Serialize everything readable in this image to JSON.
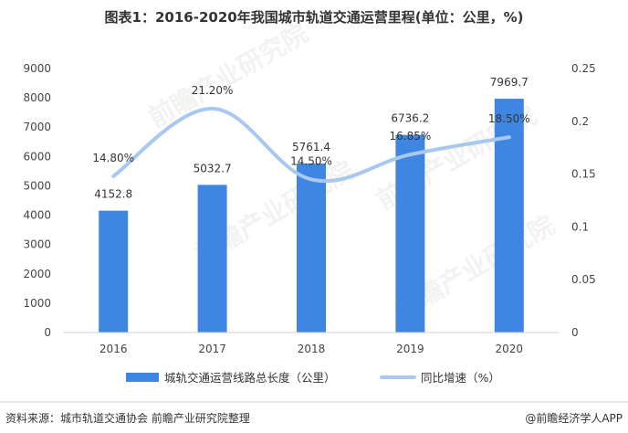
{
  "chart_data": {
    "type": "bar",
    "title": "图表1：2016-2020年我国城市轨道交通运营里程(单位：公里，%)",
    "categories": [
      "2016",
      "2017",
      "2018",
      "2019",
      "2020"
    ],
    "series": [
      {
        "name": "城轨交通运营线路总长度（公里）",
        "type": "bar",
        "axis": "left",
        "values": [
          4152.8,
          5032.7,
          5761.4,
          6736.2,
          7969.7
        ],
        "labels": [
          "4152.8",
          "5032.7",
          "5761.4",
          "6736.2",
          "7969.7"
        ],
        "color": "#3f86e3"
      },
      {
        "name": "同比增速（%）",
        "type": "line",
        "axis": "right",
        "values": [
          0.148,
          0.212,
          0.145,
          0.1685,
          0.185
        ],
        "labels": [
          "14.80%",
          "21.20%",
          "14.50%",
          "16.85%",
          "18.50%"
        ],
        "color": "#a9c8ef"
      }
    ],
    "ylim_left": [
      0,
      9000
    ],
    "yticks_left": [
      "0",
      "1000",
      "2000",
      "3000",
      "4000",
      "5000",
      "6000",
      "7000",
      "8000",
      "9000"
    ],
    "ylim_right": [
      0,
      0.25
    ],
    "yticks_right": [
      "0",
      "0.05",
      "0.1",
      "0.15",
      "0.2",
      "0.25"
    ],
    "grid": false,
    "legend_position": "bottom"
  },
  "footer": {
    "source": "资料来源：城市轨道交通协会 前瞻产业研究院整理",
    "brand": "@前瞻经济学人APP"
  },
  "colors": {
    "bar": "#3f86e3",
    "line": "#a9c8ef",
    "axis": "#d0d0d0"
  }
}
